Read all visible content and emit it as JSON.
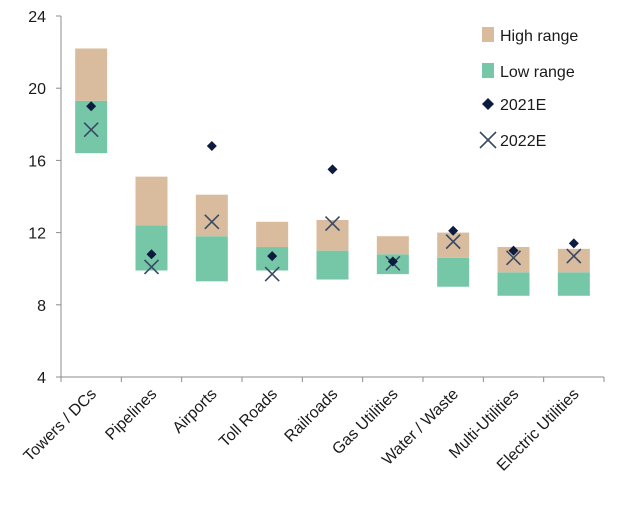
{
  "chart_data": {
    "type": "bar",
    "subtype": "floating-range-with-markers",
    "categories": [
      "Towers / DCs",
      "Pipelines",
      "Airports",
      "Toll Roads",
      "Railroads",
      "Gas Utilities",
      "Water / Waste",
      "Multi-Utilities",
      "Electric Utilities"
    ],
    "low_range": {
      "name": "Low range",
      "color": "#76c7a8",
      "bottoms": [
        16.4,
        9.9,
        9.3,
        9.9,
        9.4,
        9.7,
        9.0,
        8.5,
        8.5
      ],
      "tops": [
        19.3,
        12.4,
        11.8,
        11.2,
        11.0,
        10.8,
        10.6,
        9.8,
        9.8
      ]
    },
    "high_range": {
      "name": "High range",
      "color": "#d8bc9d",
      "bottoms": [
        19.3,
        12.4,
        11.8,
        11.2,
        11.0,
        10.8,
        10.6,
        9.8,
        9.8
      ],
      "tops": [
        22.2,
        15.1,
        14.1,
        12.6,
        12.7,
        11.8,
        12.0,
        11.2,
        11.1
      ]
    },
    "series": [
      {
        "name": "2021E",
        "marker": "diamond",
        "color": "#0d1b3e",
        "values": [
          19.0,
          10.8,
          16.8,
          10.7,
          15.5,
          10.4,
          12.1,
          11.0,
          11.4
        ]
      },
      {
        "name": "2022E",
        "marker": "x",
        "color": "#3a4a63",
        "values": [
          17.7,
          10.1,
          12.6,
          9.7,
          12.5,
          10.3,
          11.5,
          10.6,
          10.7
        ]
      }
    ],
    "yticks": [
      4,
      8,
      12,
      16,
      20,
      24
    ],
    "ylim": [
      4,
      24
    ],
    "xlabel": "",
    "ylabel": "",
    "grid": false,
    "legend": {
      "position": "top-right",
      "entries": [
        "High range",
        "Low range",
        "2021E",
        "2022E"
      ]
    }
  }
}
